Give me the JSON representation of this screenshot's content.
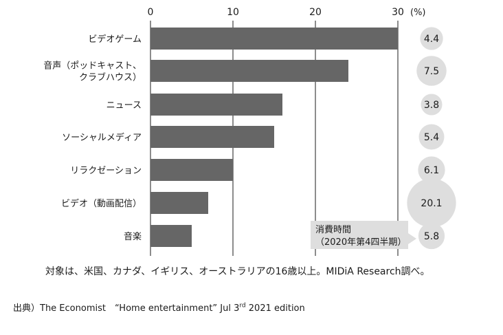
{
  "chart_data": {
    "type": "bar",
    "orientation": "horizontal",
    "unit_label": "(%)",
    "xlim": [
      0,
      30
    ],
    "x_ticks": [
      "0",
      "10",
      "20",
      "30"
    ],
    "grid": true,
    "categories": [
      [
        "ビデオゲーム"
      ],
      [
        "音声（ポッドキャスト、",
        "クラブハウス）"
      ],
      [
        "ニュース"
      ],
      [
        "ソーシャルメディア"
      ],
      [
        "リラクゼーション"
      ],
      [
        "ビデオ（動画配信）"
      ],
      [
        "音楽"
      ]
    ],
    "series": [
      {
        "values": [
          30,
          24,
          16,
          15,
          10,
          7,
          5
        ]
      }
    ],
    "bar_color": "#666666",
    "bubble_color": "#dedede",
    "bubbles": {
      "label_lines": [
        "消費時間",
        "（2020年第4四半期）"
      ],
      "values": [
        4.4,
        7.5,
        3.8,
        5.4,
        6.1,
        20.1,
        5.8
      ],
      "labels": [
        "4.4",
        "7.5",
        "3.8",
        "5.4",
        "6.1",
        "20.1",
        "5.8"
      ]
    }
  },
  "note": "対象は、米国、カナダ、イギリス、オーストラリアの16歳以上。MIDiA Research調べ。",
  "source": {
    "prefix": "出典）The Economist　“Home entertainment” Jul 3",
    "sup": "rd",
    "suffix": " 2021 edition"
  }
}
